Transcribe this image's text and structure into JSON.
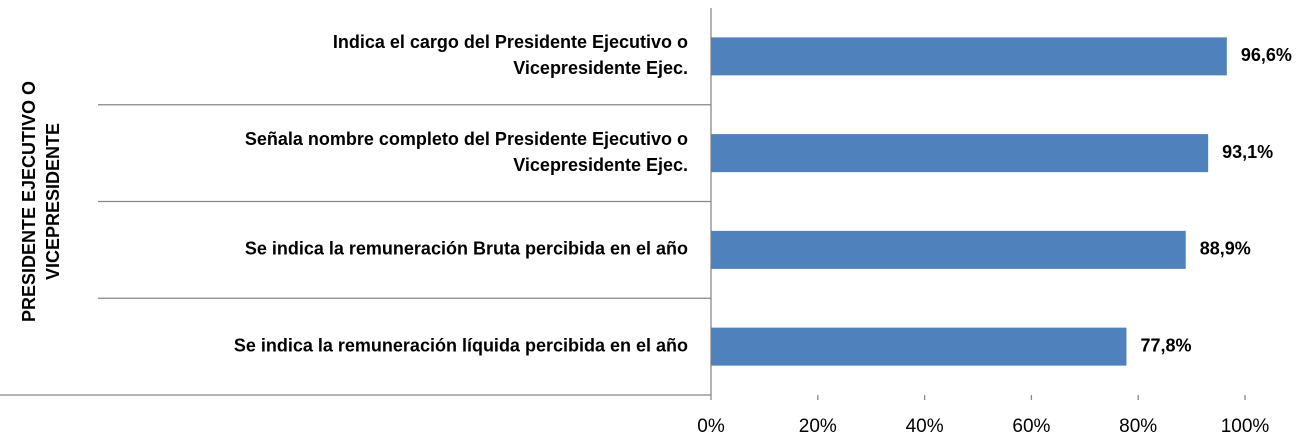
{
  "chart_data": {
    "type": "bar",
    "orientation": "horizontal",
    "group_label": [
      "PRESIDENTE EJECUTIVO O",
      "VICEPRESIDENTE"
    ],
    "categories": [
      [
        "Indica el cargo del Presidente Ejecutivo o",
        "Vicepresidente Ejec."
      ],
      [
        "Señala nombre completo del Presidente Ejecutivo o",
        "Vicepresidente Ejec."
      ],
      [
        "Se indica la remuneración Bruta percibida en el año"
      ],
      [
        "Se indica la remuneración líquida percibida en el año"
      ]
    ],
    "values": [
      96.6,
      93.1,
      88.9,
      77.8
    ],
    "value_labels": [
      "96,6%",
      "93,1%",
      "88,9%",
      "77,8%"
    ],
    "color": "#4f81bd",
    "xlim": [
      0,
      100
    ],
    "xticks": [
      {
        "value": 0,
        "label": "0%"
      },
      {
        "value": 20,
        "label": "20%"
      },
      {
        "value": 40,
        "label": "40%"
      },
      {
        "value": 60,
        "label": "60%"
      },
      {
        "value": 80,
        "label": "80%"
      },
      {
        "value": 100,
        "label": "100%"
      }
    ]
  }
}
